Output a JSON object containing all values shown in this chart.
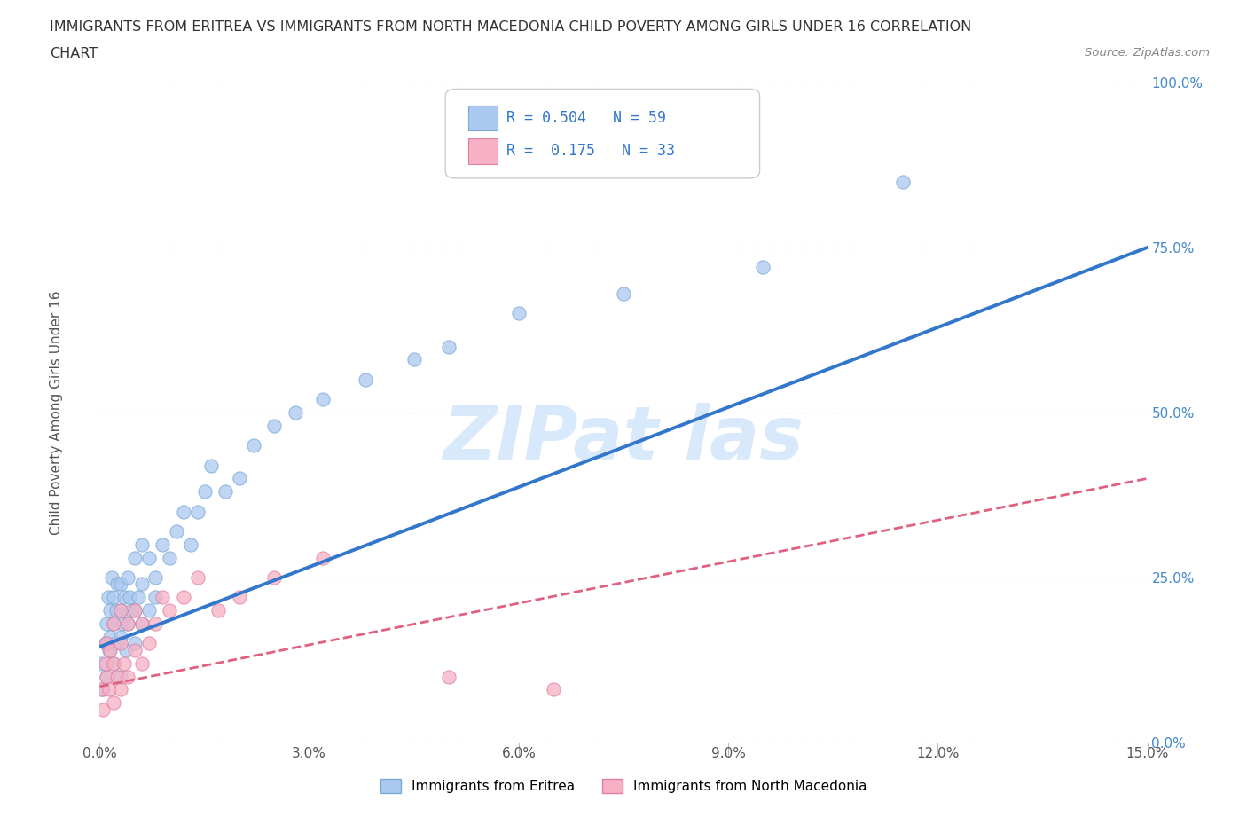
{
  "title_line1": "IMMIGRANTS FROM ERITREA VS IMMIGRANTS FROM NORTH MACEDONIA CHILD POVERTY AMONG GIRLS UNDER 16 CORRELATION",
  "title_line2": "CHART",
  "source": "Source: ZipAtlas.com",
  "ylabel": "Child Poverty Among Girls Under 16",
  "xlim": [
    0.0,
    0.15
  ],
  "ylim": [
    0.0,
    1.0
  ],
  "xticks": [
    0.0,
    0.03,
    0.06,
    0.09,
    0.12,
    0.15
  ],
  "xticklabels": [
    "0.0%",
    "3.0%",
    "6.0%",
    "9.0%",
    "12.0%",
    "15.0%"
  ],
  "yticks": [
    0.0,
    0.25,
    0.5,
    0.75,
    1.0
  ],
  "yticklabels": [
    "0.0%",
    "25.0%",
    "50.0%",
    "75.0%",
    "100.0%"
  ],
  "eritrea_color": "#aac8f0",
  "eritrea_edge": "#7aaad4",
  "north_mac_color": "#f8b0c4",
  "north_mac_edge": "#e080a0",
  "line_eritrea_color": "#3377cc",
  "line_north_mac_color": "#e06080",
  "background_color": "#ffffff",
  "grid_color": "#cccccc",
  "legend_label_eritrea": "Immigrants from Eritrea",
  "legend_label_north_mac": "Immigrants from North Macedonia",
  "r_eritrea": 0.504,
  "n_eritrea": 59,
  "r_north_mac": 0.175,
  "n_north_mac": 33,
  "legend_text_color": "#3377cc",
  "watermark_color": "#b8d8f8",
  "eritrea_scatter_x": [
    0.0002,
    0.0005,
    0.0008,
    0.001,
    0.001,
    0.0012,
    0.0013,
    0.0015,
    0.0015,
    0.0017,
    0.002,
    0.002,
    0.002,
    0.0022,
    0.0023,
    0.0025,
    0.003,
    0.003,
    0.003,
    0.003,
    0.0032,
    0.0035,
    0.0038,
    0.004,
    0.004,
    0.0042,
    0.0045,
    0.005,
    0.005,
    0.005,
    0.0055,
    0.006,
    0.006,
    0.006,
    0.007,
    0.007,
    0.008,
    0.008,
    0.009,
    0.01,
    0.011,
    0.012,
    0.013,
    0.014,
    0.015,
    0.016,
    0.018,
    0.02,
    0.022,
    0.025,
    0.028,
    0.032,
    0.038,
    0.045,
    0.05,
    0.06,
    0.075,
    0.095,
    0.115
  ],
  "eritrea_scatter_y": [
    0.12,
    0.08,
    0.15,
    0.18,
    0.1,
    0.22,
    0.14,
    0.16,
    0.2,
    0.25,
    0.12,
    0.18,
    0.22,
    0.15,
    0.2,
    0.24,
    0.1,
    0.16,
    0.2,
    0.24,
    0.18,
    0.22,
    0.14,
    0.18,
    0.25,
    0.22,
    0.2,
    0.15,
    0.2,
    0.28,
    0.22,
    0.18,
    0.24,
    0.3,
    0.2,
    0.28,
    0.22,
    0.25,
    0.3,
    0.28,
    0.32,
    0.35,
    0.3,
    0.35,
    0.38,
    0.42,
    0.38,
    0.4,
    0.45,
    0.48,
    0.5,
    0.52,
    0.55,
    0.58,
    0.6,
    0.65,
    0.68,
    0.72,
    0.85
  ],
  "north_mac_scatter_x": [
    0.0002,
    0.0005,
    0.0008,
    0.001,
    0.001,
    0.0013,
    0.0015,
    0.002,
    0.002,
    0.002,
    0.0025,
    0.003,
    0.003,
    0.003,
    0.0035,
    0.004,
    0.004,
    0.005,
    0.005,
    0.006,
    0.006,
    0.007,
    0.008,
    0.009,
    0.01,
    0.012,
    0.014,
    0.017,
    0.02,
    0.025,
    0.032,
    0.05,
    0.065
  ],
  "north_mac_scatter_y": [
    0.08,
    0.05,
    0.12,
    0.1,
    0.15,
    0.08,
    0.14,
    0.06,
    0.12,
    0.18,
    0.1,
    0.08,
    0.15,
    0.2,
    0.12,
    0.1,
    0.18,
    0.14,
    0.2,
    0.12,
    0.18,
    0.15,
    0.18,
    0.22,
    0.2,
    0.22,
    0.25,
    0.2,
    0.22,
    0.25,
    0.28,
    0.1,
    0.08
  ],
  "line_eritrea_x0": 0.0,
  "line_eritrea_y0": 0.145,
  "line_eritrea_x1": 0.15,
  "line_eritrea_y1": 0.75,
  "line_north_mac_x0": 0.0,
  "line_north_mac_y0": 0.085,
  "line_north_mac_x1": 0.15,
  "line_north_mac_y1": 0.4
}
